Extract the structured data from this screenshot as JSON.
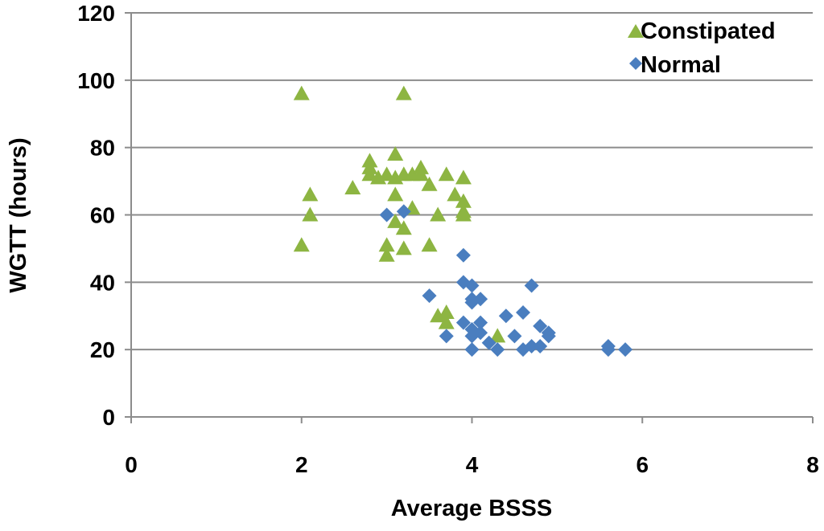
{
  "chart_data": {
    "type": "scatter",
    "title": "",
    "xlabel": "Average BSSS",
    "ylabel": "WGTT (hours)",
    "xlim": [
      0,
      8
    ],
    "ylim": [
      0,
      120
    ],
    "xticks": [
      "0",
      "2",
      "4",
      "6",
      "8"
    ],
    "yticks": [
      "0",
      "20",
      "40",
      "60",
      "80",
      "100",
      "120"
    ],
    "grid": "horizontal",
    "legend_position": "top-right",
    "series": [
      {
        "name": "Constipated",
        "marker": "triangle",
        "color": "#8db542",
        "points": [
          [
            2.0,
            96
          ],
          [
            3.2,
            96
          ],
          [
            3.1,
            78
          ],
          [
            2.8,
            76
          ],
          [
            2.8,
            74
          ],
          [
            2.8,
            72
          ],
          [
            2.9,
            71
          ],
          [
            3.0,
            72
          ],
          [
            3.1,
            71
          ],
          [
            3.2,
            72
          ],
          [
            3.3,
            72
          ],
          [
            3.4,
            74
          ],
          [
            3.4,
            72
          ],
          [
            3.5,
            69
          ],
          [
            3.7,
            72
          ],
          [
            3.9,
            71
          ],
          [
            2.6,
            68
          ],
          [
            2.1,
            66
          ],
          [
            3.1,
            66
          ],
          [
            3.8,
            66
          ],
          [
            3.9,
            64
          ],
          [
            3.3,
            62
          ],
          [
            2.1,
            60
          ],
          [
            3.1,
            58
          ],
          [
            3.6,
            60
          ],
          [
            3.9,
            60
          ],
          [
            3.9,
            61
          ],
          [
            3.2,
            56
          ],
          [
            2.0,
            51
          ],
          [
            3.0,
            51
          ],
          [
            3.2,
            50
          ],
          [
            3.5,
            51
          ],
          [
            3.0,
            48
          ],
          [
            3.6,
            30
          ],
          [
            3.7,
            31
          ],
          [
            3.7,
            28
          ],
          [
            4.3,
            24
          ]
        ]
      },
      {
        "name": "Normal",
        "marker": "diamond",
        "color": "#4a7ebf",
        "points": [
          [
            3.0,
            60
          ],
          [
            3.2,
            61
          ],
          [
            3.9,
            48
          ],
          [
            3.9,
            40
          ],
          [
            4.0,
            39
          ],
          [
            4.7,
            39
          ],
          [
            3.5,
            36
          ],
          [
            4.0,
            35
          ],
          [
            4.1,
            35
          ],
          [
            4.0,
            34
          ],
          [
            4.4,
            30
          ],
          [
            4.6,
            31
          ],
          [
            3.9,
            28
          ],
          [
            4.1,
            28
          ],
          [
            4.0,
            26
          ],
          [
            4.1,
            25
          ],
          [
            3.7,
            24
          ],
          [
            4.0,
            24
          ],
          [
            4.2,
            22
          ],
          [
            4.5,
            24
          ],
          [
            4.8,
            27
          ],
          [
            4.9,
            25
          ],
          [
            4.9,
            24
          ],
          [
            4.0,
            20
          ],
          [
            4.3,
            20
          ],
          [
            4.6,
            20
          ],
          [
            4.7,
            21
          ],
          [
            4.8,
            21
          ],
          [
            5.6,
            21
          ],
          [
            5.6,
            20
          ],
          [
            5.8,
            20
          ]
        ]
      }
    ]
  }
}
